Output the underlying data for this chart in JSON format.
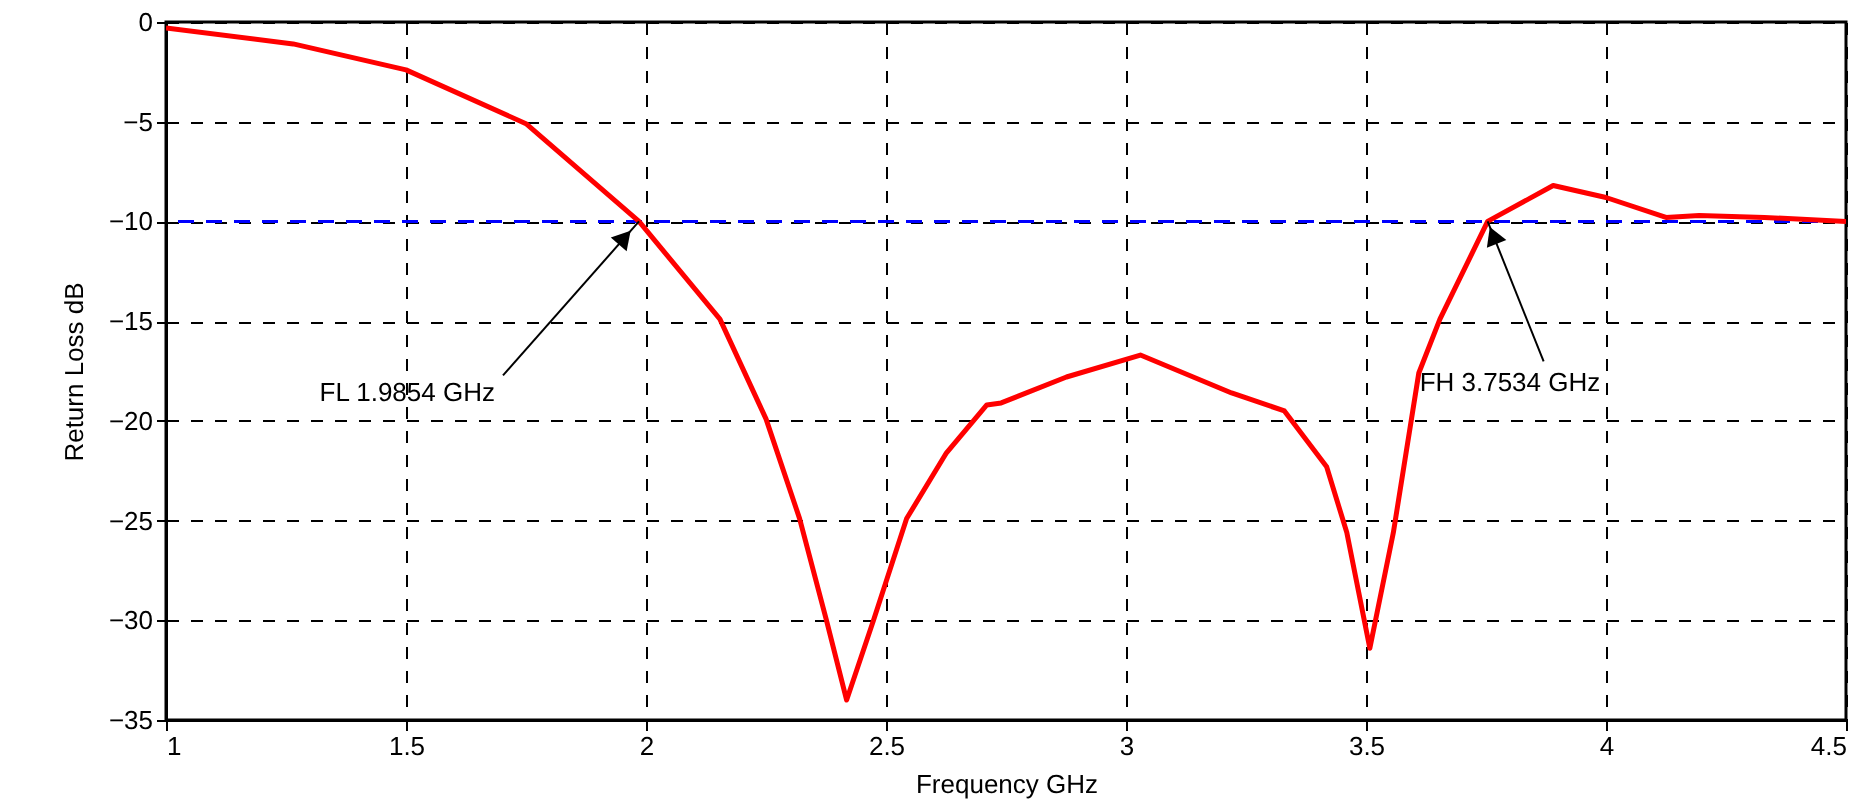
{
  "chart_data": {
    "type": "line",
    "xlabel": "Frequency GHz",
    "ylabel": "Return Loss dB",
    "x": [
      1.0,
      1.265,
      1.5,
      1.75,
      1.9854,
      2.154,
      2.25,
      2.32,
      2.376,
      2.418,
      2.474,
      2.543,
      2.626,
      2.71,
      2.74,
      2.876,
      3.03,
      3.22,
      3.33,
      3.418,
      3.46,
      3.508,
      3.557,
      3.61,
      3.654,
      3.7534,
      3.89,
      4.0,
      4.125,
      4.194,
      4.33,
      4.5
    ],
    "series": [
      {
        "color": "#ff0000",
        "values": [
          -0.3,
          -1.1,
          -2.4,
          -5.1,
          -10,
          -14.9,
          -19.9,
          -24.9,
          -30,
          -34,
          -30,
          -24.9,
          -21.6,
          -19.2,
          -19.1,
          -17.8,
          -16.7,
          -18.6,
          -19.5,
          -22.3,
          -25.6,
          -31.4,
          -25.6,
          -17.6,
          -14.9,
          -10,
          -8.2,
          -8.8,
          -9.8,
          -9.7,
          -9.8,
          -10
        ]
      }
    ],
    "xlim": [
      1,
      4.5
    ],
    "xticks": [
      1,
      1.5,
      2,
      2.5,
      3,
      3.5,
      4,
      4.5
    ],
    "ylim": [
      -35,
      0
    ],
    "yticks": [
      -35,
      -30,
      -25,
      -20,
      -15,
      -10,
      -5,
      0
    ],
    "grid": true,
    "line_style": "solid",
    "ref_lines": [
      {
        "axis": "y",
        "value": -10,
        "color": "#0000ff",
        "line_style": "dashed"
      }
    ],
    "annotations": [
      {
        "text": "FL 1.9854 GHz",
        "x": 1.9854,
        "y": -10
      },
      {
        "text": "FH 3.7534 GHz",
        "x": 3.7534,
        "y": -10
      }
    ]
  }
}
